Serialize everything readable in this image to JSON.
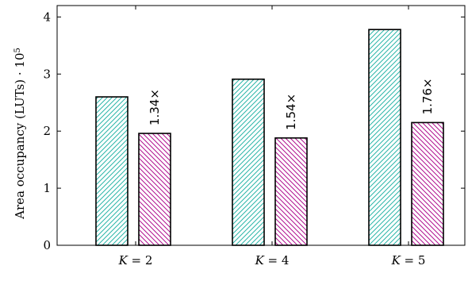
{
  "chart_data": {
    "type": "bar",
    "categories": [
      "K = 2",
      "K = 4",
      "K = 5"
    ],
    "category_parts": [
      {
        "var": "K",
        "rest": " = 2"
      },
      {
        "var": "K",
        "rest": " = 4"
      },
      {
        "var": "K",
        "rest": " = 5"
      }
    ],
    "series": [
      {
        "values": [
          2.6,
          2.91,
          3.78
        ],
        "color": "#2bb5a8",
        "pattern": "diag-right"
      },
      {
        "values": [
          1.96,
          1.88,
          2.15
        ],
        "color": "#b0108f",
        "pattern": "diag-left"
      }
    ],
    "annotations": [
      "1.34×",
      "1.54×",
      "1.76×"
    ],
    "ylabel_text": "Area occupancy (LUTs) · 10",
    "ylabel_exp": "5",
    "yticks": [
      "0",
      "1",
      "2",
      "3",
      "4"
    ],
    "ylim": [
      0,
      4.2
    ],
    "grid": false
  }
}
